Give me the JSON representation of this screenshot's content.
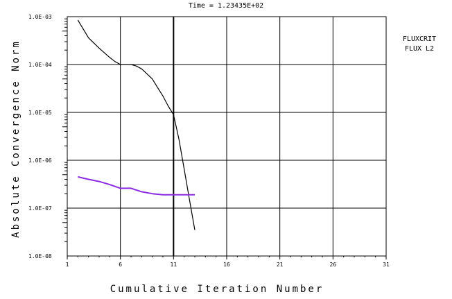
{
  "chart_data": {
    "type": "line",
    "title": "Time = 1.23435E+02",
    "xlabel": "Cumulative Iteration Number",
    "ylabel": "Absolute Convergence Norm",
    "xlim": [
      1,
      31
    ],
    "ylim": [
      1e-08,
      0.001
    ],
    "yscale": "log",
    "grid": true,
    "x_ticks": [
      1,
      6,
      11,
      16,
      21,
      26,
      31
    ],
    "x_tick_labels": [
      "1",
      "6",
      "11",
      "16",
      "21",
      "26",
      "31"
    ],
    "y_ticks": [
      1e-08,
      1e-07,
      1e-06,
      1e-05,
      0.0001,
      0.001
    ],
    "y_tick_labels": [
      "1.0E-08",
      "1.0E-07",
      "1.0E-06",
      "1.0E-05",
      "1.0E-04",
      "1.0E-03"
    ],
    "legend": {
      "placement": "right",
      "entries": [
        "FLUXCRIT",
        "FLUX L2"
      ]
    },
    "marker_line_x": 11,
    "series": [
      {
        "name": "FLUXCRIT",
        "color": "#000000",
        "x": [
          2,
          3,
          4,
          5,
          5.5,
          6,
          6.5,
          7,
          7.5,
          8,
          8.5,
          9,
          9.5,
          10,
          10.5,
          11,
          11.5,
          12,
          12.5,
          13
        ],
        "y": [
          0.00085,
          0.00036,
          0.00022,
          0.00014,
          0.000115,
          0.0001,
          0.0001,
          0.0001,
          9.3e-05,
          8.1e-05,
          6.4e-05,
          5e-05,
          3.3e-05,
          2.2e-05,
          1.35e-05,
          9e-06,
          2.8e-06,
          6.5e-07,
          1.5e-07,
          3.5e-08
        ]
      },
      {
        "name": "FLUX L2",
        "color": "#8a2be2",
        "x": [
          2,
          3,
          4,
          5,
          6,
          7,
          8,
          9,
          10,
          11,
          12,
          13
        ],
        "y": [
          4.5e-07,
          4e-07,
          3.6e-07,
          3.1e-07,
          2.6e-07,
          2.6e-07,
          2.2e-07,
          2e-07,
          1.9e-07,
          1.9e-07,
          1.9e-07,
          1.9e-07
        ]
      }
    ]
  }
}
